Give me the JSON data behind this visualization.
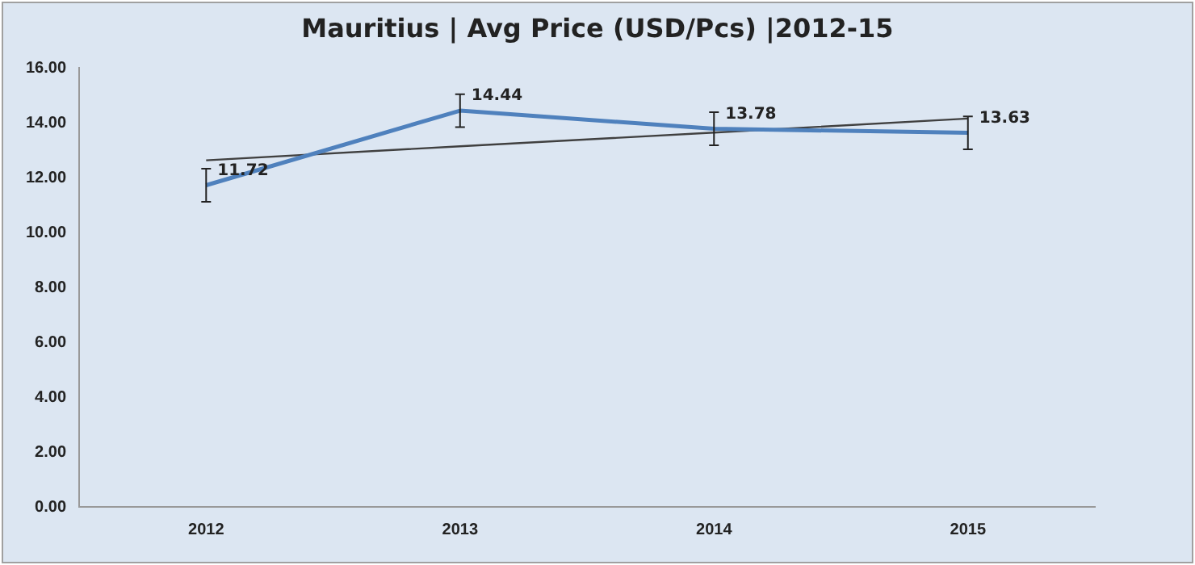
{
  "chart_data": {
    "type": "line",
    "title": "Mauritius | Avg Price (USD/Pcs) |2012-15",
    "categories": [
      "2012",
      "2013",
      "2014",
      "2015"
    ],
    "series": [
      {
        "color": "#4f81bd",
        "values": [
          11.72,
          14.44,
          13.78,
          13.63
        ],
        "errors": [
          0.6,
          0.6,
          0.6,
          0.6
        ],
        "value_labels": [
          "11.72",
          "14.44",
          "13.78",
          "13.63"
        ]
      },
      {
        "type": "line",
        "color": "#404040",
        "values": [
          12.63,
          13.14,
          13.64,
          14.15
        ]
      }
    ],
    "ylim": [
      0,
      16
    ],
    "yticks": [
      {
        "value": 0,
        "label": "0.00"
      },
      {
        "value": 2,
        "label": "2.00"
      },
      {
        "value": 4,
        "label": "4.00"
      },
      {
        "value": 6,
        "label": "6.00"
      },
      {
        "value": 8,
        "label": "8.00"
      },
      {
        "value": 10,
        "label": "10.00"
      },
      {
        "value": 12,
        "label": "12.00"
      },
      {
        "value": 14,
        "label": "14.00"
      },
      {
        "value": 16,
        "label": "16.00"
      }
    ],
    "grid": false,
    "legend": false,
    "marker": "none",
    "line_style": "solid"
  }
}
